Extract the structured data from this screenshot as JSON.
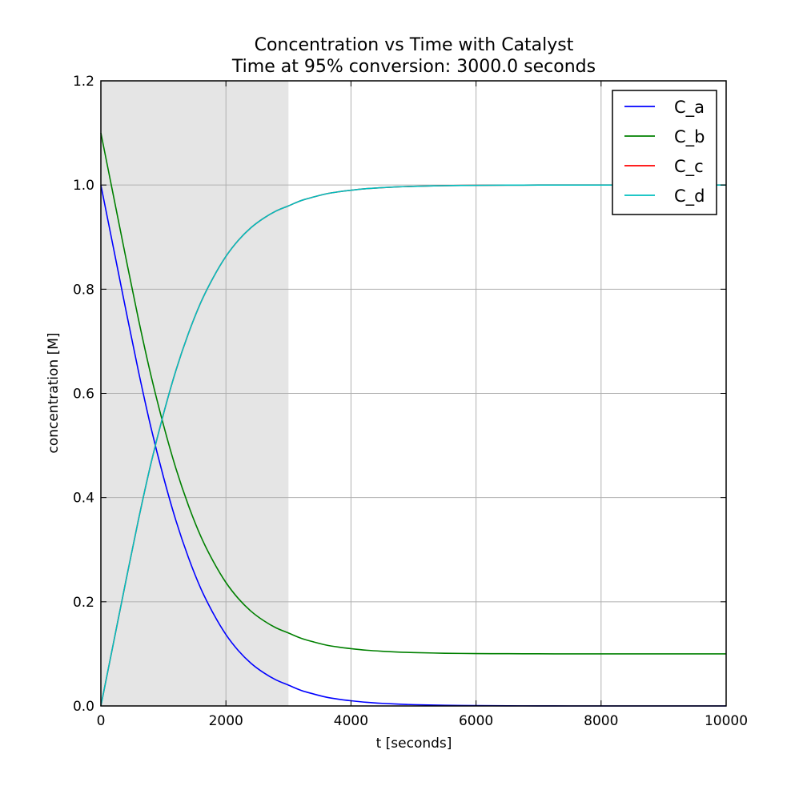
{
  "chart_data": {
    "type": "line",
    "title_line1": "Concentration vs Time with Catalyst",
    "title_line2": "Time at 95% conversion:  3000.0 seconds",
    "xlabel": "t [seconds]",
    "ylabel": "concentration [M]",
    "xlim": [
      0,
      10000
    ],
    "ylim": [
      0.0,
      1.2
    ],
    "grid": true,
    "legend_position": "top-right",
    "x_ticks": [
      "0",
      "2000",
      "4000",
      "6000",
      "8000",
      "10000"
    ],
    "y_ticks": [
      "0.0",
      "0.2",
      "0.4",
      "0.6",
      "0.8",
      "1.0",
      "1.2"
    ],
    "shaded_region": {
      "x_start": 0,
      "x_end": 3000,
      "color": "#e5e5e5"
    },
    "x": [
      0,
      200,
      400,
      600,
      800,
      1000,
      1200,
      1400,
      1600,
      1800,
      2000,
      2200,
      2400,
      2600,
      2800,
      3000,
      3200,
      3400,
      3600,
      3800,
      4000,
      4250,
      4500,
      4750,
      5000,
      5500,
      6000,
      6500,
      7000,
      7500,
      8000,
      8500,
      9000,
      9500,
      10000
    ],
    "series": [
      {
        "name": "C_a",
        "color": "#0000ff",
        "values": [
          1.0,
          0.88,
          0.76,
          0.643,
          0.535,
          0.44,
          0.356,
          0.285,
          0.225,
          0.177,
          0.137,
          0.106,
          0.082,
          0.064,
          0.05,
          0.04,
          0.03,
          0.023,
          0.017,
          0.013,
          0.01,
          0.007,
          0.005,
          0.0035,
          0.0025,
          0.0012,
          0.0006,
          0.0003,
          0.0001,
          0.0,
          0.0,
          0.0,
          0.0,
          0.0,
          0.0
        ]
      },
      {
        "name": "C_b",
        "color": "#008000",
        "values": [
          1.1,
          0.98,
          0.86,
          0.743,
          0.635,
          0.54,
          0.456,
          0.385,
          0.325,
          0.277,
          0.237,
          0.206,
          0.182,
          0.164,
          0.15,
          0.14,
          0.13,
          0.123,
          0.117,
          0.113,
          0.11,
          0.107,
          0.105,
          0.1035,
          0.1025,
          0.1012,
          0.1006,
          0.1003,
          0.1001,
          0.1,
          0.1,
          0.1,
          0.1,
          0.1,
          0.1
        ]
      },
      {
        "name": "C_c",
        "color": "#ff0000",
        "values": [
          0.0,
          0.12,
          0.24,
          0.357,
          0.465,
          0.56,
          0.644,
          0.715,
          0.775,
          0.823,
          0.863,
          0.894,
          0.918,
          0.936,
          0.95,
          0.96,
          0.97,
          0.977,
          0.983,
          0.987,
          0.99,
          0.993,
          0.995,
          0.9965,
          0.9975,
          0.9988,
          0.9994,
          0.9997,
          0.9999,
          1.0,
          1.0,
          1.0,
          1.0,
          1.0,
          1.0
        ]
      },
      {
        "name": "C_d",
        "color": "#00bfbf",
        "values": [
          0.0,
          0.12,
          0.24,
          0.357,
          0.465,
          0.56,
          0.644,
          0.715,
          0.775,
          0.823,
          0.863,
          0.894,
          0.918,
          0.936,
          0.95,
          0.96,
          0.97,
          0.977,
          0.983,
          0.987,
          0.99,
          0.993,
          0.995,
          0.9965,
          0.9975,
          0.9988,
          0.9994,
          0.9997,
          0.9999,
          1.0,
          1.0,
          1.0,
          1.0,
          1.0,
          1.0
        ]
      }
    ]
  }
}
